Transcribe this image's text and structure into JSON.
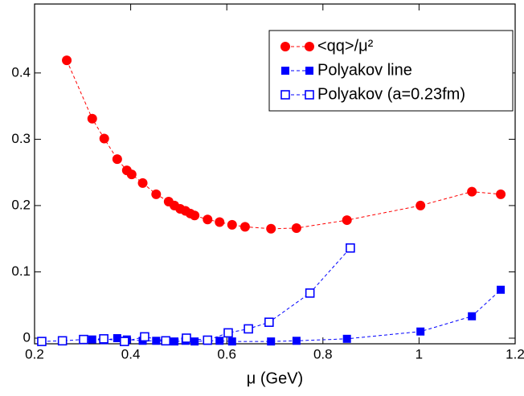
{
  "chart_data": {
    "type": "line",
    "xlabel": "μ (GeV)",
    "xlim": [
      0.2,
      1.2
    ],
    "ylim": [
      -0.0085,
      0.504
    ],
    "xticks": [
      0.2,
      0.4,
      0.6,
      0.8,
      1,
      1.2
    ],
    "yticks": [
      0,
      0.1,
      0.2,
      0.3,
      0.4
    ],
    "legend": "upper right",
    "series": [
      {
        "name": "<qq>/μ²",
        "color": "#ff0000",
        "marker": "circle",
        "x": [
          0.267,
          0.32,
          0.345,
          0.372,
          0.392,
          0.402,
          0.425,
          0.453,
          0.479,
          0.491,
          0.503,
          0.514,
          0.524,
          0.533,
          0.56,
          0.585,
          0.611,
          0.638,
          0.692,
          0.745,
          0.85,
          1.003,
          1.11,
          1.17
        ],
        "values": [
          0.419,
          0.331,
          0.301,
          0.27,
          0.253,
          0.247,
          0.234,
          0.217,
          0.206,
          0.2,
          0.195,
          0.192,
          0.188,
          0.185,
          0.179,
          0.175,
          0.171,
          0.168,
          0.165,
          0.166,
          0.178,
          0.2,
          0.221,
          0.217
        ]
      },
      {
        "name": "Polyakov line",
        "color": "#0000ff",
        "marker": "filled-square",
        "x": [
          0.32,
          0.345,
          0.372,
          0.392,
          0.425,
          0.453,
          0.491,
          0.514,
          0.533,
          0.56,
          0.585,
          0.611,
          0.692,
          0.745,
          0.85,
          1.003,
          1.11,
          1.17
        ],
        "values": [
          -0.002,
          -0.003,
          0.0,
          -0.002,
          -0.004,
          -0.004,
          -0.005,
          -0.004,
          -0.005,
          -0.004,
          -0.004,
          -0.005,
          -0.005,
          -0.004,
          -0.001,
          0.01,
          0.033,
          0.073
        ]
      },
      {
        "name": "Polyakov (a=0.23fm)",
        "color": "#0000ff",
        "marker": "open-square",
        "x": [
          0.215,
          0.258,
          0.302,
          0.344,
          0.387,
          0.429,
          0.473,
          0.516,
          0.56,
          0.603,
          0.645,
          0.688,
          0.773,
          0.857
        ],
        "values": [
          -0.005,
          -0.004,
          -0.002,
          -0.001,
          -0.005,
          0.002,
          -0.004,
          0.0,
          -0.003,
          0.008,
          0.014,
          0.024,
          0.068,
          0.136
        ]
      }
    ]
  }
}
